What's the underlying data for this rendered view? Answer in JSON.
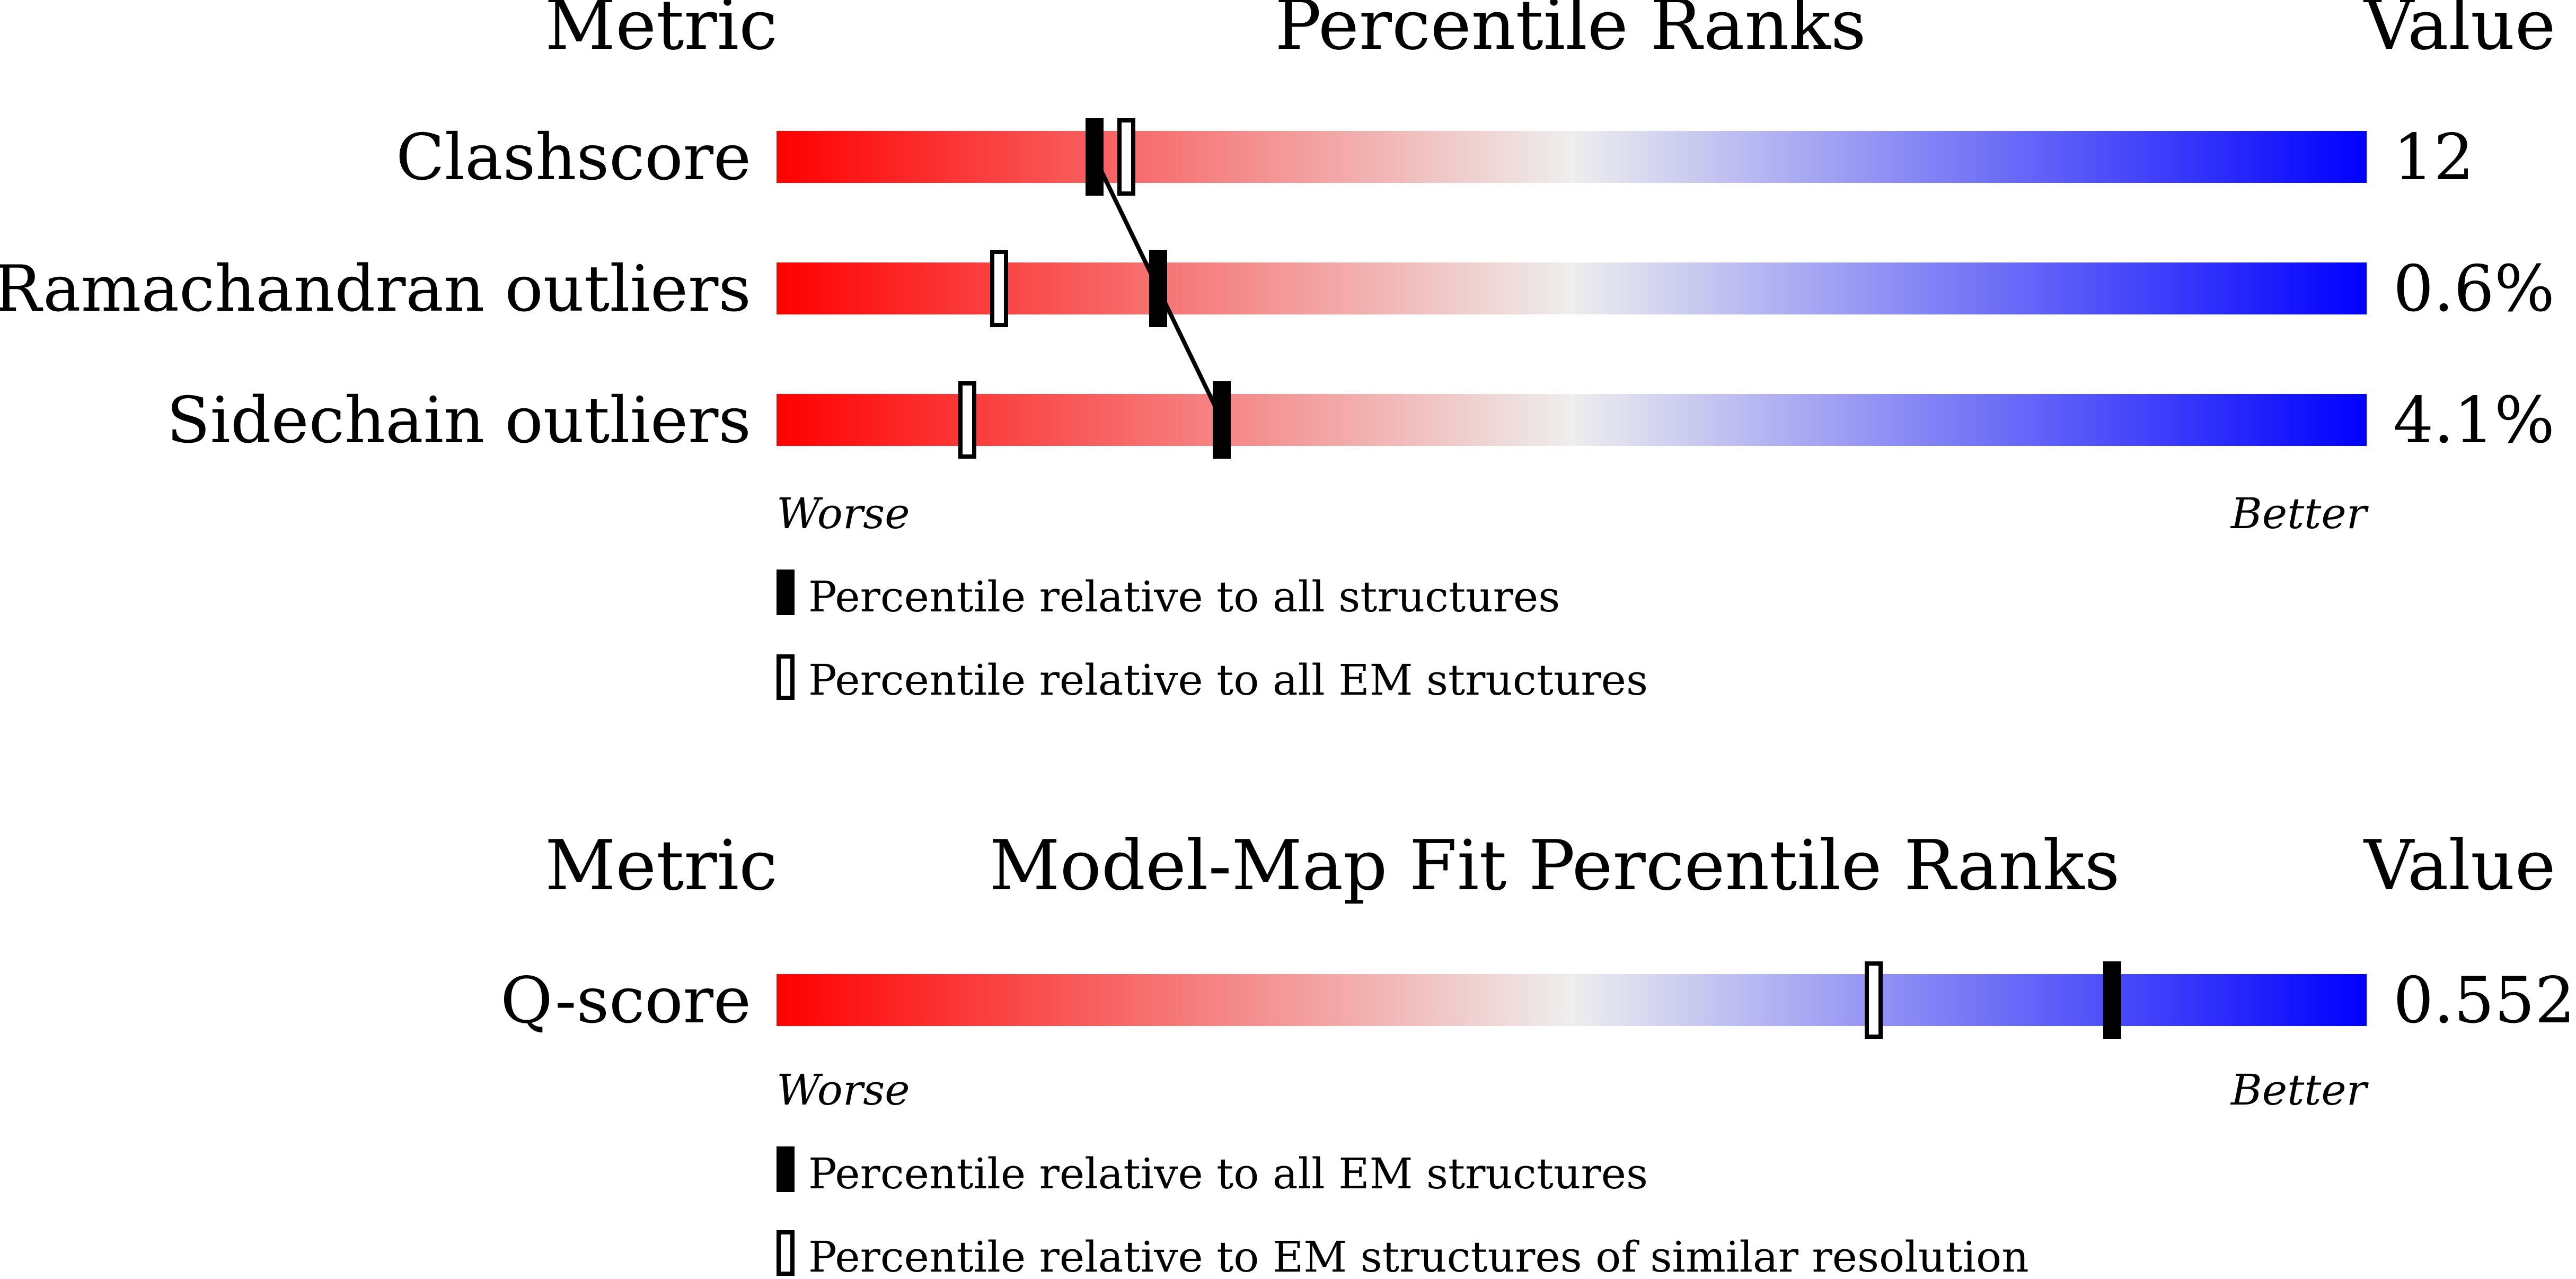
{
  "colors": {
    "worse": "#ff0000",
    "neutral": "#eeeeee",
    "better": "#0000ff",
    "marker": "#000000"
  },
  "panel_1": {
    "header_metric": "Metric",
    "header_title": "Percentile Ranks",
    "header_value": "Value",
    "worse_label": "Worse",
    "better_label": "Better",
    "legend_filled": "Percentile relative to all structures",
    "legend_open": "Percentile relative to all EM structures"
  },
  "panel_2": {
    "header_metric": "Metric",
    "header_title": "Model-Map Fit Percentile Ranks",
    "header_value": "Value",
    "worse_label": "Worse",
    "better_label": "Better",
    "legend_filled": "Percentile relative to all EM structures",
    "legend_open": "Percentile relative to EM structures of similar resolution"
  },
  "chart_data": [
    {
      "type": "bar",
      "title": "Percentile Ranks",
      "xlim": [
        0,
        100
      ],
      "categories": [
        "Clashscore",
        "Ramachandran outliers",
        "Sidechain outliers"
      ],
      "values_display": [
        "12",
        "0.6%",
        "4.1%"
      ],
      "series": [
        {
          "name": "Percentile relative to all structures",
          "marker": "filled",
          "values": [
            20,
            24,
            28
          ]
        },
        {
          "name": "Percentile relative to all EM structures",
          "marker": "open",
          "values": [
            22,
            14,
            12
          ]
        }
      ]
    },
    {
      "type": "bar",
      "title": "Model-Map Fit Percentile Ranks",
      "xlim": [
        0,
        100
      ],
      "categories": [
        "Q-score"
      ],
      "values_display": [
        "0.552"
      ],
      "series": [
        {
          "name": "Percentile relative to all EM structures",
          "marker": "filled",
          "values": [
            84
          ]
        },
        {
          "name": "Percentile relative to EM structures of similar resolution",
          "marker": "open",
          "values": [
            69
          ]
        }
      ]
    }
  ]
}
